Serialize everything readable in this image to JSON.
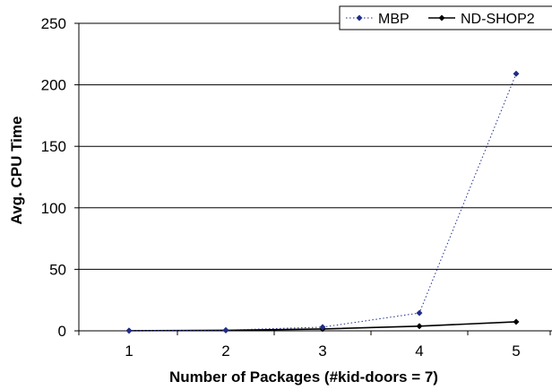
{
  "chart_data": {
    "type": "line",
    "title": "",
    "xlabel": "Number of Packages  (#kid-doors = 7)",
    "ylabel": "Avg. CPU Time",
    "x": [
      1,
      2,
      3,
      4,
      5
    ],
    "xticks": [
      "1",
      "2",
      "3",
      "4",
      "5"
    ],
    "ylim": [
      0,
      250
    ],
    "yticks": [
      "0",
      "50",
      "100",
      "150",
      "200",
      "250"
    ],
    "grid": "horizontal",
    "legend_position": "top-right",
    "series": [
      {
        "name": "MBP",
        "values": [
          0.1,
          0.6,
          3,
          14.5,
          209
        ],
        "color": "#1f2d8a",
        "style": "dotted",
        "marker": "diamond"
      },
      {
        "name": "ND-SHOP2",
        "values": [
          0.1,
          0.4,
          1.5,
          3.8,
          7.3
        ],
        "color": "#000000",
        "style": "solid",
        "marker": "diamond"
      }
    ]
  }
}
